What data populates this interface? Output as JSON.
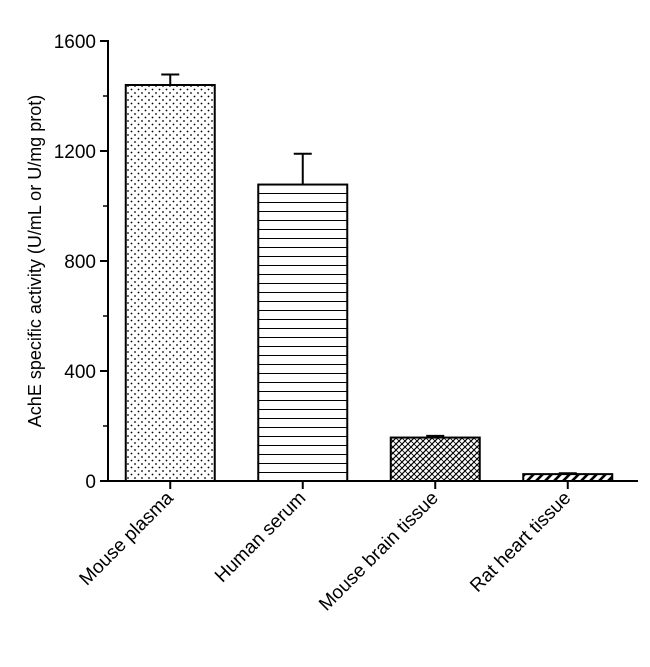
{
  "chart_data": {
    "type": "bar",
    "title": "",
    "xlabel": "",
    "ylabel": "AchE specific activity (U/mL or U/mg prot)",
    "ylim": [
      0,
      1600
    ],
    "yticks": [
      "0",
      "400",
      "800",
      "1200",
      "1600"
    ],
    "grid": false,
    "categories": [
      "Mouse plasma",
      "Human serum",
      "Mouse brain tissue",
      "Rat heart tissue"
    ],
    "values": [
      1440,
      1078,
      158,
      25
    ],
    "errors": [
      38,
      112,
      6,
      3
    ],
    "patterns": [
      "dots",
      "horizontal-lines",
      "crosshatch",
      "diagonal-stripes"
    ]
  }
}
